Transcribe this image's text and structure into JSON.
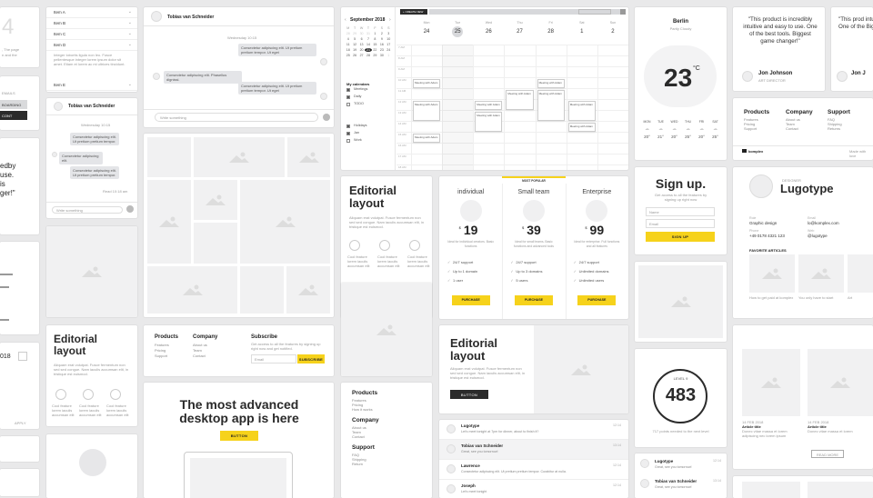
{
  "accordion": {
    "items": [
      "Item A",
      "Item B",
      "Item C",
      "Item D",
      "Item E"
    ],
    "item_d_text": "Integer lobortis ligula non leo. Fusce pellentesque integer lorem ipsum dolor sit amet. Etiam et lorem ac mi ultrices tincidunt."
  },
  "left_edge": {
    "text1": "4",
    "text2": ", The page",
    "text3": "n and the",
    "menu1": "EMAILS",
    "menu2": "BOARDING",
    "menu3": "CONT",
    "quote": "edby\nuse.\nis\nger!\"",
    "year": "018",
    "apply": "APPLY"
  },
  "chat": {
    "name": "Tobias van Schneider",
    "day": "Wednesday 10:15",
    "messages": [
      "Consectetur adipiscing elit. Ut pretium pretium tempor. Ut eget",
      "Consectetur adipiscing elit. Phasellus dignissi.",
      "Consectetur adipiscing elit. Ut pretium pretium tempor. Ut eget",
      "Consectetur adipiscing elit. Ut pretium pretium tempor. Ut eget"
    ],
    "input_placeholder": "Write something"
  },
  "chat_small": {
    "name": "Tobias van Schneider",
    "day": "Wednesday 10:15",
    "messages": [
      "Consectetur adipiscing elit. Ut pretium pretium tempor.",
      "Consectetur adipiscing elit.",
      "Consectetur adipiscing elit. Ut pretium pretium tempor."
    ],
    "read": "Read 10:18 am",
    "input_placeholder": "Write something"
  },
  "calendar": {
    "month": "September 2018",
    "weekdays": [
      "M",
      "T",
      "W",
      "T",
      "F",
      "S",
      "S"
    ],
    "days": [
      "28",
      "29",
      "30",
      "31",
      "1",
      "2",
      "3",
      "4",
      "5",
      "6",
      "7",
      "8",
      "9",
      "10",
      "11",
      "12",
      "13",
      "14",
      "15",
      "16",
      "17",
      "18",
      "19",
      "20",
      "21",
      "22",
      "23",
      "24",
      "25",
      "26",
      "27",
      "28",
      "29",
      "30",
      "1",
      "2",
      "3",
      "4",
      "5",
      "6",
      "7"
    ],
    "my_calendars_label": "My calendars",
    "my_calendars": [
      "Meetings",
      "Daily",
      "TODO"
    ],
    "other_label": "Other calendars",
    "other_calendars": [
      "Holidays",
      "Jan",
      "Work"
    ],
    "create_label": "+ CREATE NEW",
    "week_days": [
      {
        "n": "24",
        "d": "Mon"
      },
      {
        "n": "25",
        "d": "Tue"
      },
      {
        "n": "26",
        "d": "Wed"
      },
      {
        "n": "27",
        "d": "Thu"
      },
      {
        "n": "28",
        "d": "Fri"
      },
      {
        "n": "1",
        "d": "Sat"
      },
      {
        "n": "2",
        "d": "Sun"
      }
    ],
    "event_label": "Meeting with Adam"
  },
  "weather": {
    "city": "Berlin",
    "condition": "Partly Cloudy",
    "temp": "23",
    "unit": "°C",
    "days": [
      "MON",
      "TUE",
      "WED",
      "THU",
      "FRI",
      "SAT"
    ],
    "temps": [
      "20°",
      "21°",
      "20°",
      "25°",
      "20°",
      "25°"
    ]
  },
  "testimonial": {
    "quote": "\"This product is incredibly intuitive and easy to use. One of the best tools. Biggest game changer!\"",
    "name": "Jon Johnson",
    "role": "ART DIRECTOR",
    "quote2": "\"This prod intuitive an One of the Biggest ga",
    "name2": "Jon J"
  },
  "footer_right": {
    "cols": [
      {
        "title": "Products",
        "items": [
          "Features",
          "Pricing",
          "Support"
        ]
      },
      {
        "title": "Company",
        "items": [
          "About us",
          "Team",
          "Contact"
        ]
      },
      {
        "title": "Support",
        "items": [
          "FAQ",
          "Shipping",
          "Returns"
        ]
      }
    ],
    "brand": "komplex",
    "made": "Made with love"
  },
  "editorial_a": {
    "title": "Editorial layout",
    "body": "Aliquam erat volutpat. Fusce fermentum non sed sed congue. Nam iaculis accumsan elit, in tristique est euismod.",
    "features": [
      "Cool feature lorem iaculis accumsan elit",
      "Cool feature lorem iaculis accumsan elit",
      "Cool feature lorem iaculis accumsan elit"
    ]
  },
  "editorial_b": {
    "title": "Editorial layout",
    "body": "Aliquam erat volutpat. Fusce fermentum non sed sed congue. Nam iaculis accumsan elit, in tristique est euismod.",
    "features": [
      "Cool feature lorem iaculis accumsan elit",
      "Cool feature lorem iaculis accumsan elit",
      "Cool feature lorem iaculis accumsan elit"
    ]
  },
  "editorial_c": {
    "title": "Editorial layout",
    "body": "Aliquam erat volutpat. Fusce fermentum non sed sed congue. Nam iaculis accumsan elit, in tristique est euismod.",
    "button": "BUTTON"
  },
  "pricing": {
    "badge": "MOST POPULAR",
    "plans": [
      {
        "name": "individual",
        "price": "19",
        "currency": "$",
        "desc": "Ideal for individual creators. Basic functions",
        "features": [
          "24/7 support",
          "Up to 1 domain",
          "1 user"
        ],
        "button": "PURCHASE"
      },
      {
        "name": "Small team",
        "price": "39",
        "currency": "$",
        "desc": "Ideal for small teams. Basic functions and advanced tools",
        "features": [
          "24/7 support",
          "Up to 3 domains",
          "5 users"
        ],
        "button": "PURCHASE"
      },
      {
        "name": "Enterprise",
        "price": "99",
        "currency": "$",
        "desc": "Ideal for enterprise. Full functions and all features",
        "features": [
          "24/7 support",
          "Unlimited domains",
          "Unlimited users"
        ],
        "button": "PURCHASE"
      }
    ]
  },
  "signup": {
    "title": "Sign up.",
    "desc": "Get access to all the features by signing up right now",
    "name_ph": "Name",
    "email_ph": "Email",
    "button": "SIGN UP"
  },
  "profile": {
    "tag": "DESIGNER",
    "name": "Lugotype",
    "fields": [
      {
        "label": "Role",
        "value": "Graphic design"
      },
      {
        "label": "Email",
        "value": "lo@komplex.com"
      },
      {
        "label": "Phone",
        "value": "+49 0178 4321 123"
      },
      {
        "label": "Web",
        "value": "@lugotype"
      }
    ],
    "articles_label": "FAVORITE ARTICLES",
    "articles": [
      "How to get paid at komplex",
      "You only have to start",
      "Art"
    ]
  },
  "level": {
    "label": "LEVEL 9",
    "value": "483",
    "desc": "717 points needed to the next level"
  },
  "footer_mid": {
    "cols": [
      {
        "title": "Products",
        "items": [
          "Features",
          "Pricing",
          "Support"
        ]
      },
      {
        "title": "Company",
        "items": [
          "About us",
          "Team",
          "Contact"
        ]
      }
    ],
    "subscribe_title": "Subscribe",
    "subscribe_desc": "Get access to all the features by signing up right now and get notified.",
    "email_ph": "Email",
    "subscribe_btn": "SUBSCRIBE"
  },
  "footer_list": {
    "cols": [
      {
        "title": "Products",
        "items": [
          "Features",
          "Pricing",
          "How it works"
        ]
      },
      {
        "title": "Company",
        "items": [
          "About us",
          "Team",
          "Contact"
        ]
      },
      {
        "title": "Support",
        "items": [
          "FAQ",
          "Shipping",
          "Return"
        ]
      }
    ]
  },
  "hero": {
    "title": "The most advanced desktop app is here",
    "button": "BUTTON"
  },
  "messages": [
    {
      "name": "Lugotype",
      "text": "Let's meet tonight at 7pm for dinner, about to finish it?",
      "time": "12:14"
    },
    {
      "name": "Tobias van Schneider",
      "text": "Great, see you tomorrow!",
      "time": "13:14"
    },
    {
      "name": "Lawrence",
      "text": "Consectetur adipiscing elit. Ut pretium pretium tempor. Curabitur at nulla.",
      "time": "12:14"
    },
    {
      "name": "Joseph",
      "text": "Let's meet tonight",
      "time": "12:14"
    }
  ],
  "small_list": [
    {
      "name": "Lugotype",
      "text": "Great, see you tomorrow!",
      "time": "12:14"
    },
    {
      "name": "Tobias van Schneider",
      "text": "Great, see you tomorrow!",
      "time": "13:14"
    }
  ],
  "articles_right": {
    "items": [
      {
        "date": "14 FEB 2018",
        "title": "Article title",
        "text": "Donec vitae massa et lorem adipiscing nec lorem ipsum"
      },
      {
        "date": "14 FEB 2018",
        "title": "Article title",
        "text": "Donec vitae massa et lorem"
      }
    ],
    "button": "READ MORE"
  }
}
